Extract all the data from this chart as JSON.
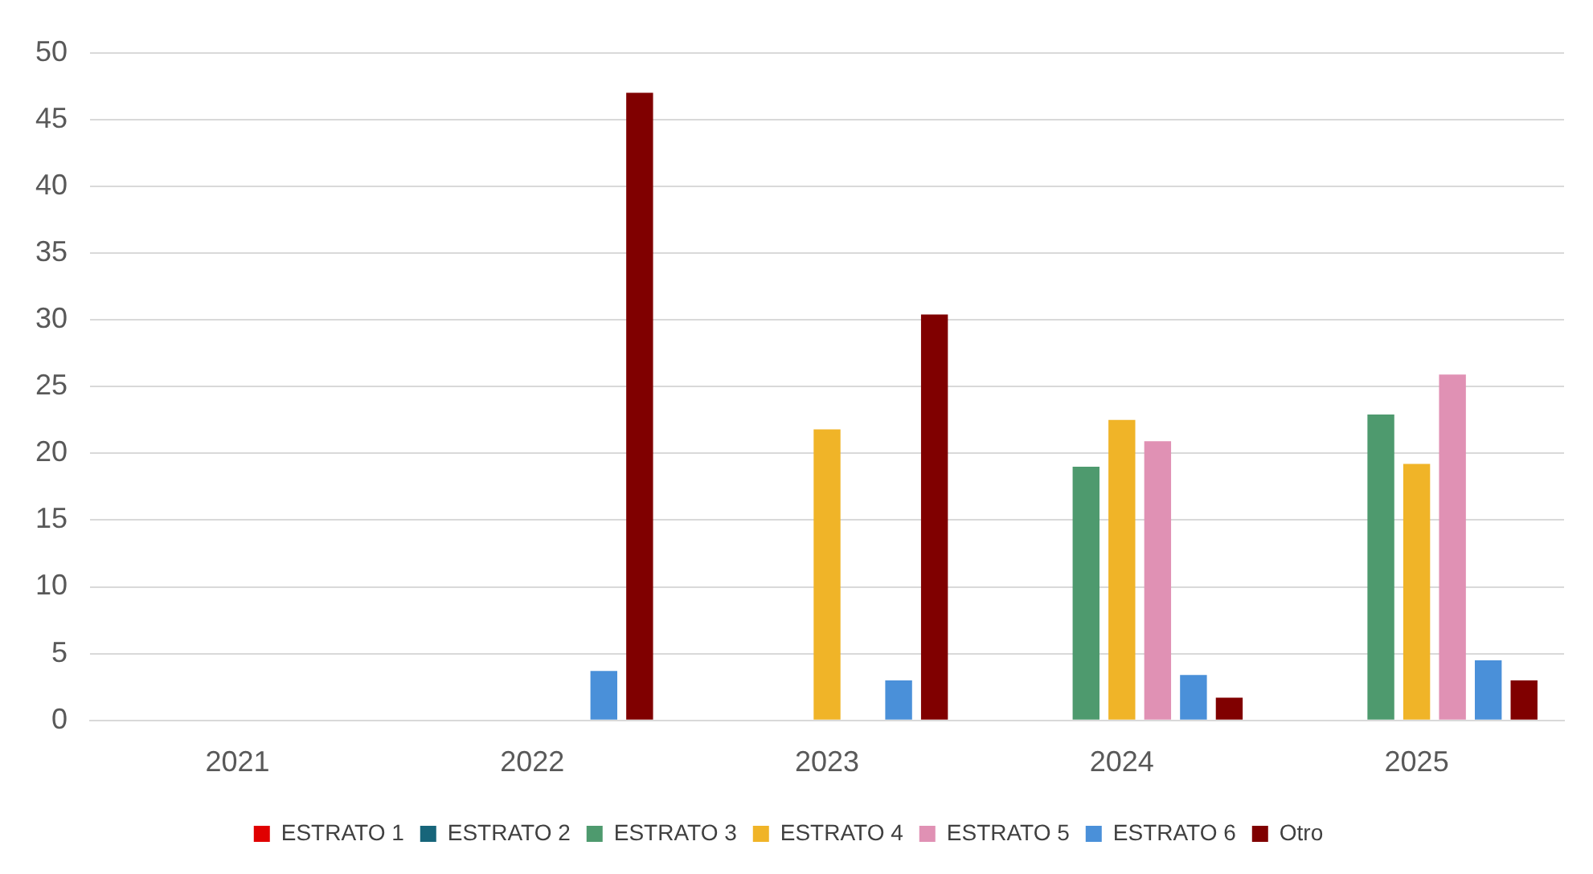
{
  "chart_data": {
    "type": "bar",
    "categories": [
      "2021",
      "2022",
      "2023",
      "2024",
      "2025"
    ],
    "series": [
      {
        "name": "ESTRATO 1",
        "color": "#e00000",
        "values": [
          null,
          null,
          null,
          null,
          null
        ]
      },
      {
        "name": "ESTRATO 2",
        "color": "#17657a",
        "values": [
          null,
          null,
          null,
          null,
          null
        ]
      },
      {
        "name": "ESTRATO 3",
        "color": "#4e9a6e",
        "values": [
          null,
          null,
          null,
          19.0,
          22.9
        ]
      },
      {
        "name": "ESTRATO 4",
        "color": "#f0b428",
        "values": [
          null,
          null,
          21.8,
          22.5,
          19.2
        ]
      },
      {
        "name": "ESTRATO 5",
        "color": "#e091b4",
        "values": [
          null,
          null,
          null,
          20.9,
          25.9
        ]
      },
      {
        "name": "ESTRATO 6",
        "color": "#4a90d9",
        "values": [
          null,
          3.7,
          3.0,
          3.4,
          4.5
        ]
      },
      {
        "name": "Otro",
        "color": "#800000",
        "values": [
          null,
          47.0,
          30.4,
          1.7,
          3.0
        ]
      }
    ],
    "ylim": [
      0,
      50
    ],
    "yticks": [
      0,
      5,
      10,
      15,
      20,
      25,
      30,
      35,
      40,
      45,
      50
    ],
    "grid": "y",
    "legend": "bottom"
  }
}
